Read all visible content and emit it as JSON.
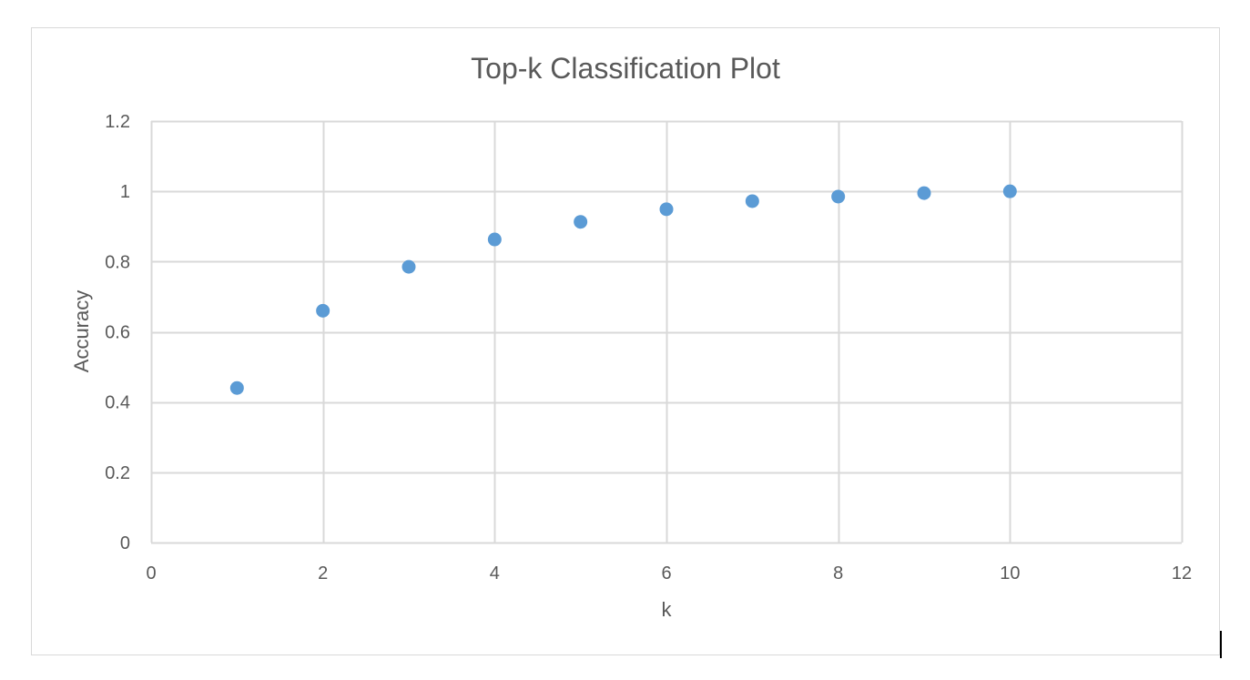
{
  "chart_data": {
    "type": "scatter",
    "title": "Top-k Classification Plot",
    "xlabel": "k",
    "ylabel": "Accuracy",
    "xlim": [
      0,
      12
    ],
    "ylim": [
      0,
      1.2
    ],
    "x_ticks": [
      "0",
      "2",
      "4",
      "6",
      "8",
      "10",
      "12"
    ],
    "y_ticks": [
      "0",
      "0.2",
      "0.4",
      "0.6",
      "0.8",
      "1",
      "1.2"
    ],
    "grid": true,
    "legend": "none",
    "marker_color": "#5b9bd5",
    "grid_color": "#d9d9d9",
    "series": [
      {
        "x": [
          1,
          2,
          3,
          4,
          5,
          6,
          7,
          8,
          9,
          10
        ],
        "y": [
          0.44,
          0.66,
          0.785,
          0.863,
          0.913,
          0.949,
          0.972,
          0.985,
          0.995,
          1.0
        ]
      }
    ]
  }
}
